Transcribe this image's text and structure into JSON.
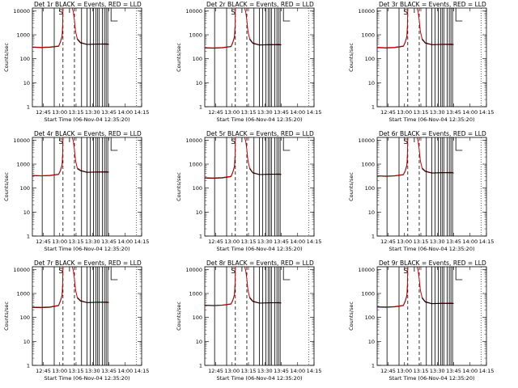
{
  "colors": {
    "events": "#000000",
    "lld": "#cc0000",
    "background": "#ffffff"
  },
  "chart_data": [
    {
      "type": "line",
      "title": "Det 1r BLACK = Events, RED = LLD",
      "xlabel": "Start Time (06-Nov-04 12:35:20)",
      "ylabel": "Counts/sec",
      "x_ticks": [
        "12:45",
        "13:00",
        "13:15",
        "13:30",
        "13:45",
        "14:00",
        "14:15"
      ],
      "y_ticks": [
        "1",
        "10",
        "100",
        "1000",
        "10000"
      ],
      "ylim": [
        1,
        13000
      ],
      "y_scale": "log",
      "markers": [
        "S"
      ],
      "baseline_before": 300,
      "baseline_after": 400,
      "series": [
        {
          "name": "BLACK = Events",
          "color": "#000000",
          "x": [
            0,
            5,
            10,
            15,
            16,
            17,
            17.3
          ],
          "y": [
            300,
            290,
            300,
            330,
            480,
            850,
            2000
          ]
        },
        {
          "name": "RED = LLD",
          "color": "#cc0000",
          "x": [
            0,
            5,
            10,
            15,
            16,
            17,
            17.3
          ],
          "y": [
            310,
            300,
            310,
            340,
            500,
            900,
            2400
          ]
        }
      ]
    },
    {
      "type": "line",
      "title": "Det 2r BLACK = Events, RED = LLD",
      "xlabel": "Start Time (06-Nov-04 12:35:20)",
      "ylabel": "Counts/sec",
      "x_ticks": [
        "12:45",
        "13:00",
        "13:15",
        "13:30",
        "13:45",
        "14:00",
        "14:15"
      ],
      "y_ticks": [
        "1",
        "10",
        "100",
        "1000",
        "10000"
      ],
      "ylim": [
        1,
        13000
      ],
      "y_scale": "log",
      "markers": [
        "S"
      ],
      "baseline_before": 280,
      "baseline_after": 380,
      "series": [
        {
          "name": "BLACK = Events",
          "color": "#000000",
          "x": [
            0,
            5,
            10,
            15,
            16,
            17,
            17.3
          ],
          "y": [
            280,
            275,
            285,
            320,
            460,
            800,
            1900
          ]
        },
        {
          "name": "RED = LLD",
          "color": "#cc0000",
          "x": [
            0,
            5,
            10,
            15,
            16,
            17,
            17.3
          ],
          "y": [
            290,
            285,
            295,
            330,
            480,
            850,
            2300
          ]
        }
      ]
    },
    {
      "type": "line",
      "title": "Det 3r BLACK = Events, RED = LLD",
      "xlabel": "Start Time (06-Nov-04 12:35:20)",
      "ylabel": "Counts/sec",
      "x_ticks": [
        "12:45",
        "13:00",
        "13:15",
        "13:30",
        "13:45",
        "14:00",
        "14:15"
      ],
      "y_ticks": [
        "1",
        "10",
        "100",
        "1000",
        "10000"
      ],
      "ylim": [
        1,
        13000
      ],
      "y_scale": "log",
      "markers": [
        "S"
      ],
      "baseline_before": 290,
      "baseline_after": 390,
      "series": [
        {
          "name": "BLACK = Events",
          "color": "#000000",
          "x": [
            0,
            5,
            10,
            15,
            16,
            17,
            17.3
          ],
          "y": [
            290,
            280,
            290,
            330,
            470,
            820,
            1950
          ]
        },
        {
          "name": "RED = LLD",
          "color": "#cc0000",
          "x": [
            0,
            5,
            10,
            15,
            16,
            17,
            17.3
          ],
          "y": [
            300,
            290,
            300,
            340,
            490,
            870,
            2350
          ]
        }
      ]
    },
    {
      "type": "line",
      "title": "Det 4r BLACK = Events, RED = LLD",
      "xlabel": "Start Time (06-Nov-04 12:35:20)",
      "ylabel": "Counts/sec",
      "x_ticks": [
        "12:45",
        "13:00",
        "13:15",
        "13:30",
        "13:45",
        "14:00",
        "14:15"
      ],
      "y_ticks": [
        "1",
        "10",
        "100",
        "1000",
        "10000"
      ],
      "ylim": [
        1,
        13000
      ],
      "y_scale": "log",
      "markers": [
        "S"
      ],
      "baseline_before": 330,
      "baseline_after": 460,
      "series": [
        {
          "name": "BLACK = Events",
          "color": "#000000",
          "x": [
            0,
            5,
            10,
            15,
            16,
            17,
            17.3
          ],
          "y": [
            330,
            320,
            330,
            370,
            520,
            900,
            2100
          ]
        },
        {
          "name": "RED = LLD",
          "color": "#cc0000",
          "x": [
            0,
            5,
            10,
            15,
            16,
            17,
            17.3
          ],
          "y": [
            340,
            330,
            340,
            380,
            540,
            950,
            2500
          ]
        }
      ]
    },
    {
      "type": "line",
      "title": "Det 5r BLACK = Events, RED = LLD",
      "xlabel": "Start Time (06-Nov-04 12:35:20)",
      "ylabel": "Counts/sec",
      "x_ticks": [
        "12:45",
        "13:00",
        "13:15",
        "13:30",
        "13:45",
        "14:00",
        "14:15"
      ],
      "y_ticks": [
        "1",
        "10",
        "100",
        "1000",
        "10000"
      ],
      "ylim": [
        1,
        13000
      ],
      "y_scale": "log",
      "markers": [
        "S"
      ],
      "baseline_before": 260,
      "baseline_after": 370,
      "series": [
        {
          "name": "BLACK = Events",
          "color": "#000000",
          "x": [
            0,
            5,
            10,
            15,
            16,
            17,
            17.3
          ],
          "y": [
            260,
            255,
            265,
            300,
            440,
            780,
            1850
          ]
        },
        {
          "name": "RED = LLD",
          "color": "#cc0000",
          "x": [
            0,
            5,
            10,
            15,
            16,
            17,
            17.3
          ],
          "y": [
            270,
            265,
            275,
            310,
            460,
            820,
            2250
          ]
        }
      ]
    },
    {
      "type": "line",
      "title": "Det 6r BLACK = Events, RED = LLD",
      "xlabel": "Start Time (06-Nov-04 12:35:20)",
      "ylabel": "Counts/sec",
      "x_ticks": [
        "12:45",
        "13:00",
        "13:15",
        "13:30",
        "13:45",
        "14:00",
        "14:15"
      ],
      "y_ticks": [
        "1",
        "10",
        "100",
        "1000",
        "10000"
      ],
      "ylim": [
        1,
        13000
      ],
      "y_scale": "log",
      "markers": [
        "S"
      ],
      "baseline_before": 320,
      "baseline_after": 430,
      "series": [
        {
          "name": "BLACK = Events",
          "color": "#000000",
          "x": [
            0,
            5,
            10,
            15,
            16,
            17,
            17.3
          ],
          "y": [
            320,
            310,
            320,
            360,
            500,
            880,
            2050
          ]
        },
        {
          "name": "RED = LLD",
          "color": "#cc0000",
          "x": [
            0,
            5,
            10,
            15,
            16,
            17,
            17.3
          ],
          "y": [
            330,
            320,
            330,
            370,
            520,
            920,
            2450
          ]
        }
      ]
    },
    {
      "type": "line",
      "title": "Det 7r BLACK = Events, RED = LLD",
      "xlabel": "Start Time (06-Nov-04 12:35:20)",
      "ylabel": "Counts/sec",
      "x_ticks": [
        "12:45",
        "13:00",
        "13:15",
        "13:30",
        "13:45",
        "14:00",
        "14:15"
      ],
      "y_ticks": [
        "1",
        "10",
        "100",
        "1000",
        "10000"
      ],
      "ylim": [
        1,
        13000
      ],
      "y_scale": "log",
      "markers": [
        "S"
      ],
      "baseline_before": 260,
      "baseline_after": 420,
      "series": [
        {
          "name": "BLACK = Events",
          "color": "#000000",
          "x": [
            0,
            5,
            10,
            15,
            16,
            17,
            17.3
          ],
          "y": [
            260,
            255,
            265,
            310,
            470,
            820,
            1950
          ]
        },
        {
          "name": "RED = LLD",
          "color": "#cc0000",
          "x": [
            0,
            5,
            10,
            15,
            16,
            17,
            17.3
          ],
          "y": [
            270,
            265,
            275,
            320,
            490,
            860,
            2350
          ]
        }
      ]
    },
    {
      "type": "line",
      "title": "Det 8r BLACK = Events, RED = LLD",
      "xlabel": "Start Time (06-Nov-04 12:35:20)",
      "ylabel": "Counts/sec",
      "x_ticks": [
        "12:45",
        "13:00",
        "13:15",
        "13:30",
        "13:45",
        "14:00",
        "14:15"
      ],
      "y_ticks": [
        "1",
        "10",
        "100",
        "1000",
        "10000"
      ],
      "ylim": [
        1,
        13000
      ],
      "y_scale": "log",
      "markers": [
        "S"
      ],
      "baseline_before": 320,
      "baseline_after": 400,
      "series": [
        {
          "name": "BLACK = Events",
          "color": "#000000",
          "x": [
            0,
            5,
            10,
            15,
            16,
            17,
            17.3
          ],
          "y": [
            320,
            310,
            320,
            360,
            500,
            870,
            2050
          ]
        },
        {
          "name": "RED = LLD",
          "color": "#cc0000",
          "x": [
            0,
            5,
            10,
            15,
            16,
            17,
            17.3
          ],
          "y": [
            330,
            320,
            330,
            370,
            520,
            910,
            2450
          ]
        }
      ]
    },
    {
      "type": "line",
      "title": "Det 9r BLACK = Events, RED = LLD",
      "xlabel": "Start Time (06-Nov-04 12:35:20)",
      "ylabel": "Counts/sec",
      "x_ticks": [
        "12:45",
        "13:00",
        "13:15",
        "13:30",
        "13:45",
        "14:00",
        "14:15"
      ],
      "y_ticks": [
        "1",
        "10",
        "100",
        "1000",
        "10000"
      ],
      "ylim": [
        1,
        13000
      ],
      "y_scale": "log",
      "markers": [
        "S"
      ],
      "baseline_before": 270,
      "baseline_after": 380,
      "series": [
        {
          "name": "BLACK = Events",
          "color": "#000000",
          "x": [
            0,
            5,
            10,
            15,
            16,
            17,
            17.3
          ],
          "y": [
            270,
            265,
            275,
            310,
            460,
            800,
            1900
          ]
        },
        {
          "name": "RED = LLD",
          "color": "#cc0000",
          "x": [
            0,
            5,
            10,
            15,
            16,
            17,
            17.3
          ],
          "y": [
            280,
            275,
            285,
            320,
            480,
            840,
            2300
          ]
        }
      ]
    }
  ]
}
